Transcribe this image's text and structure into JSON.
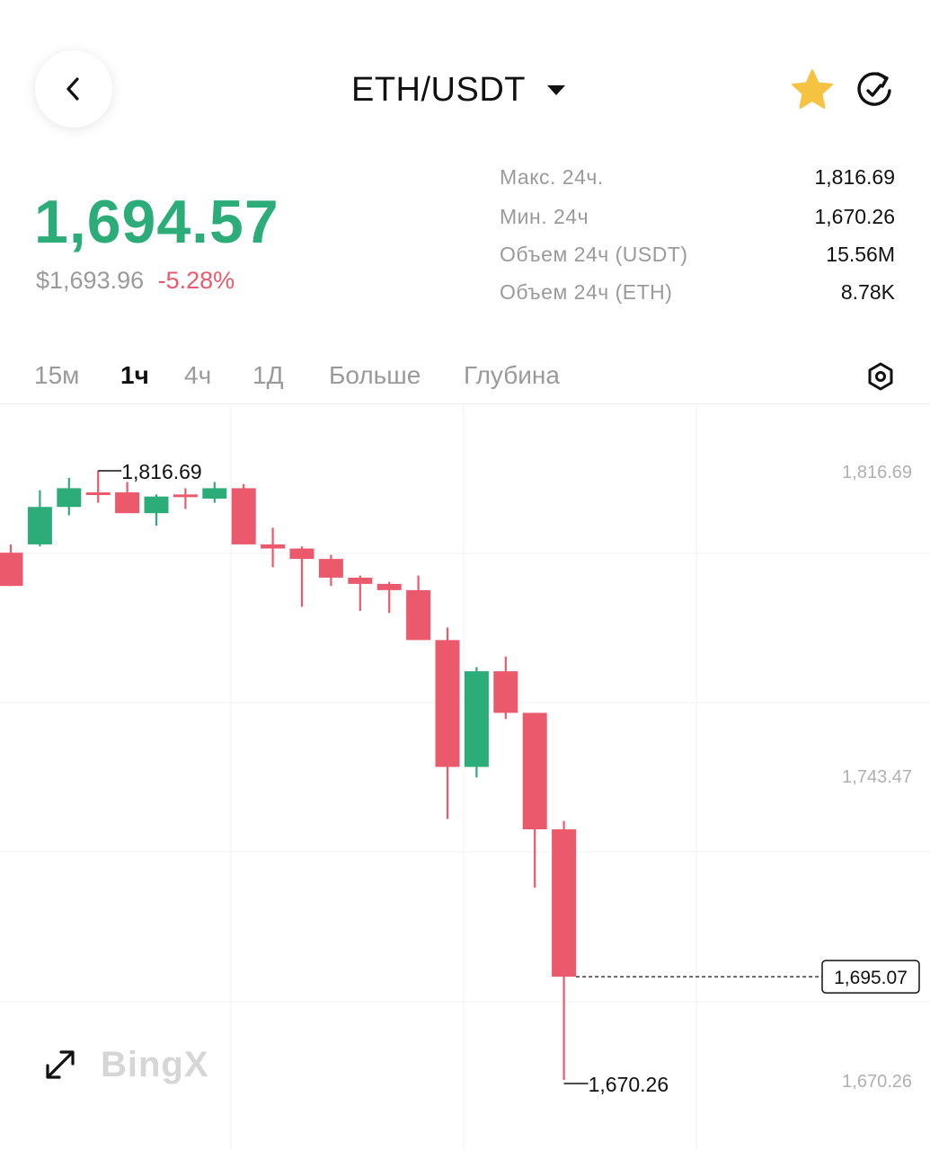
{
  "header": {
    "pair": "ETH/USDT",
    "back_icon": "chevron-left-icon",
    "favorite_icon": "star-icon",
    "favorite_color": "#f5c242",
    "refresh_icon": "refresh-icon"
  },
  "ticker": {
    "last_price": "1,694.57",
    "usd_price": "$1,693.96",
    "change_percent": "-5.28%",
    "up_color": "#2bac78",
    "down_color": "#ea5a6c"
  },
  "stats": [
    {
      "label": "Макс. 24ч.",
      "value": "1,816.69"
    },
    {
      "label": "Мин. 24ч",
      "value": "1,670.26"
    },
    {
      "label": "Объем 24ч (USDT)",
      "value": "15.56M"
    },
    {
      "label": "Объем 24ч (ETH)",
      "value": "8.78K"
    }
  ],
  "tabs": [
    {
      "label": "15м",
      "active": false
    },
    {
      "label": "1ч",
      "active": true
    },
    {
      "label": "4ч",
      "active": false
    },
    {
      "label": "1Д",
      "active": false
    },
    {
      "label": "Больше",
      "active": false
    },
    {
      "label": "Глубина",
      "active": false
    }
  ],
  "settings_icon": "hexagon-settings-icon",
  "chart_controls": {
    "expand_icon": "expand-arrows-icon",
    "watermark": "BingX"
  },
  "chart_data": {
    "type": "candlestick",
    "timeframe": "1ч",
    "y_axis_labels": [
      "1,816.69",
      "1,743.47",
      "1,670.26"
    ],
    "high_marker": "1,816.69",
    "low_marker": "1,670.26",
    "current_price_label": "1,695.07",
    "current_price": 1695.07,
    "grid": true,
    "candles": [
      {
        "o": 1797.0,
        "h": 1799.0,
        "l": 1789.0,
        "c": 1789.0
      },
      {
        "o": 1799.0,
        "h": 1812.0,
        "l": 1798.5,
        "c": 1808.0
      },
      {
        "o": 1808.0,
        "h": 1815.0,
        "l": 1806.0,
        "c": 1812.5
      },
      {
        "o": 1811.5,
        "h": 1816.69,
        "l": 1809.0,
        "c": 1811.0
      },
      {
        "o": 1811.5,
        "h": 1814.0,
        "l": 1806.5,
        "c": 1806.5
      },
      {
        "o": 1806.5,
        "h": 1811.0,
        "l": 1803.5,
        "c": 1810.5
      },
      {
        "o": 1811.0,
        "h": 1812.5,
        "l": 1807.5,
        "c": 1810.5
      },
      {
        "o": 1810.0,
        "h": 1814.0,
        "l": 1809.0,
        "c": 1812.5
      },
      {
        "o": 1812.5,
        "h": 1813.5,
        "l": 1799.0,
        "c": 1799.0
      },
      {
        "o": 1799.0,
        "h": 1803.0,
        "l": 1793.5,
        "c": 1798.0
      },
      {
        "o": 1798.0,
        "h": 1798.5,
        "l": 1784.0,
        "c": 1795.5
      },
      {
        "o": 1795.5,
        "h": 1796.5,
        "l": 1789.0,
        "c": 1791.0
      },
      {
        "o": 1791.0,
        "h": 1791.5,
        "l": 1783.0,
        "c": 1789.5
      },
      {
        "o": 1789.5,
        "h": 1790.0,
        "l": 1782.5,
        "c": 1788.0
      },
      {
        "o": 1788.0,
        "h": 1791.5,
        "l": 1776.0,
        "c": 1776.0
      },
      {
        "o": 1776.0,
        "h": 1779.0,
        "l": 1733.0,
        "c": 1745.5
      },
      {
        "o": 1745.5,
        "h": 1769.5,
        "l": 1743.0,
        "c": 1768.5
      },
      {
        "o": 1768.5,
        "h": 1772.0,
        "l": 1757.0,
        "c": 1758.5
      },
      {
        "o": 1758.5,
        "h": 1758.5,
        "l": 1716.5,
        "c": 1730.5
      },
      {
        "o": 1730.5,
        "h": 1732.5,
        "l": 1670.26,
        "c": 1695.07
      }
    ]
  }
}
